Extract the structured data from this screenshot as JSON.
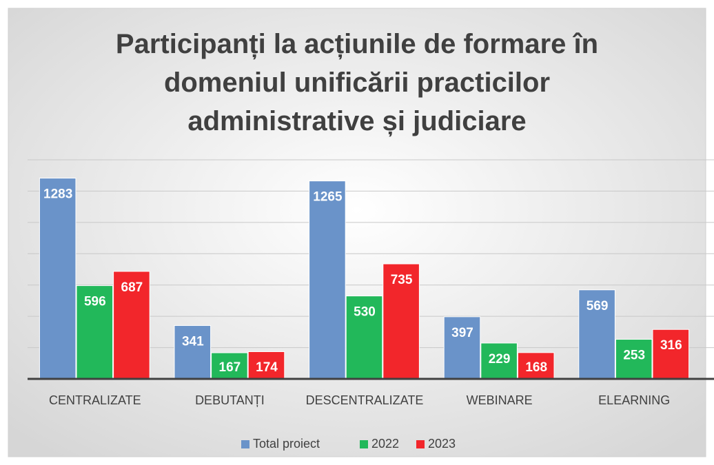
{
  "chart_data": {
    "type": "bar",
    "title": "Participanți la acțiunile de formare în\ndomeniul unificării practicilor\nadministrative și judiciare",
    "categories": [
      "CENTRALIZATE",
      "DEBUTANȚI",
      "DESCENTRALIZATE",
      "WEBINARE",
      "ELEARNING"
    ],
    "series": [
      {
        "name": "Total proiect",
        "color": "#6a93c9",
        "values": [
          1283,
          341,
          1265,
          397,
          569
        ]
      },
      {
        "name": "2022",
        "color": "#22b85a",
        "values": [
          596,
          167,
          530,
          229,
          253
        ]
      },
      {
        "name": "2023",
        "color": "#f2262b",
        "values": [
          687,
          174,
          735,
          168,
          316
        ]
      }
    ],
    "ylim": [
      0,
      1400
    ],
    "yticks": [
      0,
      200,
      400,
      600,
      800,
      1000,
      1200,
      1400
    ],
    "grid": true,
    "legend": "bottom"
  }
}
